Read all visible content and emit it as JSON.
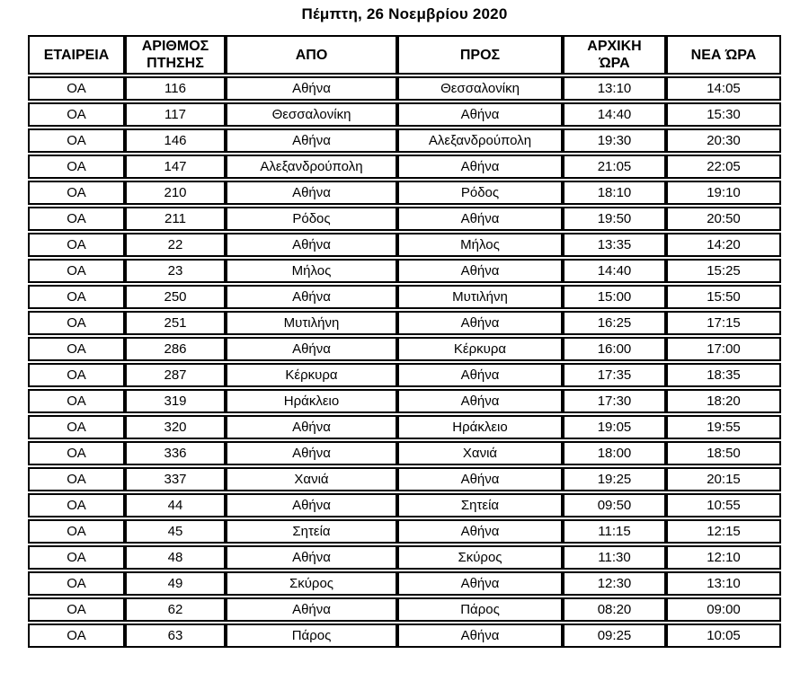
{
  "page": {
    "title": "Πέμπτη, 26 Νοεμβρίου 2020"
  },
  "colors": {
    "background": "#ffffff",
    "text": "#000000",
    "table_border": "#000000"
  },
  "table": {
    "columns": [
      "ΕΤΑΙΡΕΙΑ",
      "ΑΡΙΘΜΟΣ\nΠΤΗΣΗΣ",
      "ΑΠΟ",
      "ΠΡΟΣ",
      "ΑΡΧΙΚΗ\nΏΡΑ",
      "ΝΕΑ ΏΡΑ"
    ],
    "rows": [
      [
        "ΟΑ",
        "116",
        "Αθήνα",
        "Θεσσαλονίκη",
        "13:10",
        "14:05"
      ],
      [
        "ΟΑ",
        "117",
        "Θεσσαλονίκη",
        "Αθήνα",
        "14:40",
        "15:30"
      ],
      [
        "ΟΑ",
        "146",
        "Αθήνα",
        "Αλεξανδρούπολη",
        "19:30",
        "20:30"
      ],
      [
        "ΟΑ",
        "147",
        "Αλεξανδρούπολη",
        "Αθήνα",
        "21:05",
        "22:05"
      ],
      [
        "ΟΑ",
        "210",
        "Αθήνα",
        "Ρόδος",
        "18:10",
        "19:10"
      ],
      [
        "ΟΑ",
        "211",
        "Ρόδος",
        "Αθήνα",
        "19:50",
        "20:50"
      ],
      [
        "ΟΑ",
        "22",
        "Αθήνα",
        "Μήλος",
        "13:35",
        "14:20"
      ],
      [
        "ΟΑ",
        "23",
        "Μήλος",
        "Αθήνα",
        "14:40",
        "15:25"
      ],
      [
        "ΟΑ",
        "250",
        "Αθήνα",
        "Μυτιλήνη",
        "15:00",
        "15:50"
      ],
      [
        "ΟΑ",
        "251",
        "Μυτιλήνη",
        "Αθήνα",
        "16:25",
        "17:15"
      ],
      [
        "ΟΑ",
        "286",
        "Αθήνα",
        "Κέρκυρα",
        "16:00",
        "17:00"
      ],
      [
        "ΟΑ",
        "287",
        "Κέρκυρα",
        "Αθήνα",
        "17:35",
        "18:35"
      ],
      [
        "ΟΑ",
        "319",
        "Ηράκλειο",
        "Αθήνα",
        "17:30",
        "18:20"
      ],
      [
        "ΟΑ",
        "320",
        "Αθήνα",
        "Ηράκλειο",
        "19:05",
        "19:55"
      ],
      [
        "ΟΑ",
        "336",
        "Αθήνα",
        "Χανιά",
        "18:00",
        "18:50"
      ],
      [
        "ΟΑ",
        "337",
        "Χανιά",
        "Αθήνα",
        "19:25",
        "20:15"
      ],
      [
        "ΟΑ",
        "44",
        "Αθήνα",
        "Σητεία",
        "09:50",
        "10:55"
      ],
      [
        "ΟΑ",
        "45",
        "Σητεία",
        "Αθήνα",
        "11:15",
        "12:15"
      ],
      [
        "ΟΑ",
        "48",
        "Αθήνα",
        "Σκύρος",
        "11:30",
        "12:10"
      ],
      [
        "ΟΑ",
        "49",
        "Σκύρος",
        "Αθήνα",
        "12:30",
        "13:10"
      ],
      [
        "ΟΑ",
        "62",
        "Αθήνα",
        "Πάρος",
        "08:20",
        "09:00"
      ],
      [
        "ΟΑ",
        "63",
        "Πάρος",
        "Αθήνα",
        "09:25",
        "10:05"
      ]
    ]
  }
}
